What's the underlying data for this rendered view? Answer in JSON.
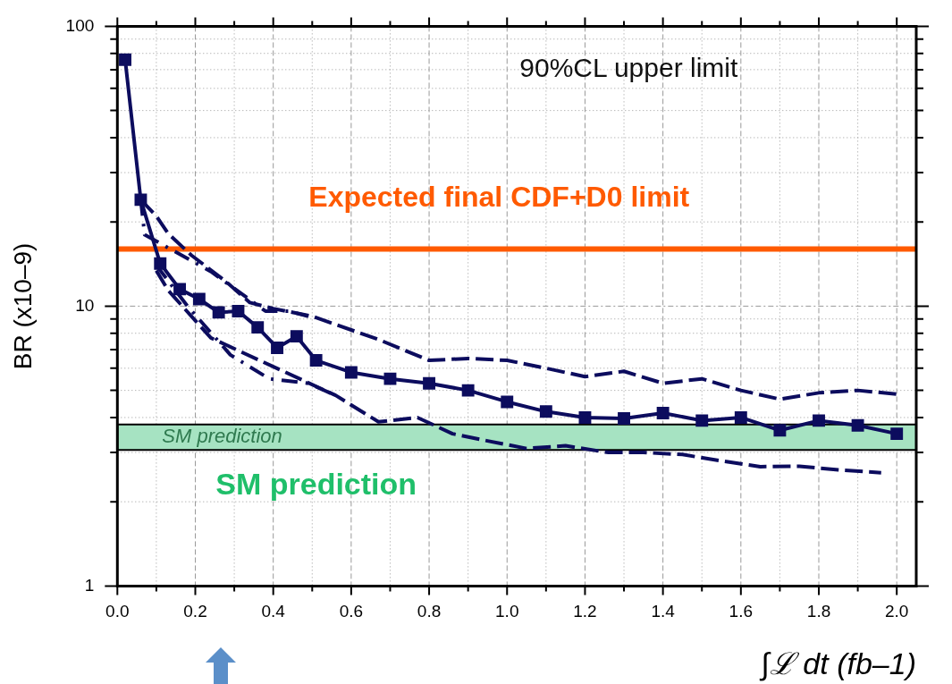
{
  "chart_data": {
    "type": "line",
    "xlabel": "∫ℒ dt (fb–1)",
    "ylabel": "BR (x10–9)",
    "xlim": [
      0,
      2.05
    ],
    "ylim": [
      1,
      100
    ],
    "log": "y",
    "grid": true,
    "legend": false,
    "xticks": [
      {
        "value": 0,
        "label": "0.0"
      },
      {
        "value": 0.1,
        "label": null
      },
      {
        "value": 0.2,
        "label": "0.2"
      },
      {
        "value": 0.3,
        "label": null
      },
      {
        "value": 0.4,
        "label": "0.4"
      },
      {
        "value": 0.5,
        "label": null
      },
      {
        "value": 0.6,
        "label": "0.6"
      },
      {
        "value": 0.7,
        "label": null
      },
      {
        "value": 0.8,
        "label": "0.8"
      },
      {
        "value": 0.9,
        "label": null
      },
      {
        "value": 1,
        "label": "1.0"
      },
      {
        "value": 1.1,
        "label": null
      },
      {
        "value": 1.2,
        "label": "1.2"
      },
      {
        "value": 1.3,
        "label": null
      },
      {
        "value": 1.4,
        "label": "1.4"
      },
      {
        "value": 1.5,
        "label": null
      },
      {
        "value": 1.6,
        "label": "1.6"
      },
      {
        "value": 1.7,
        "label": null
      },
      {
        "value": 1.8,
        "label": "1.8"
      },
      {
        "value": 1.9,
        "label": null
      },
      {
        "value": 2,
        "label": "2.0"
      }
    ],
    "yticks": [
      1,
      {
        "value": 2,
        "label": null
      },
      {
        "value": 3,
        "label": null
      },
      {
        "value": 4,
        "label": null
      },
      {
        "value": 5,
        "label": null
      },
      {
        "value": 6,
        "label": null
      },
      {
        "value": 7,
        "label": null
      },
      {
        "value": 8,
        "label": null
      },
      {
        "value": 9,
        "label": null
      },
      10,
      {
        "value": 20,
        "label": null
      },
      {
        "value": 30,
        "label": null
      },
      {
        "value": 40,
        "label": null
      },
      {
        "value": 50,
        "label": null
      },
      {
        "value": 60,
        "label": null
      },
      {
        "value": 70,
        "label": null
      },
      {
        "value": 80,
        "label": null
      },
      {
        "value": 90,
        "label": null
      },
      100
    ],
    "series": [
      {
        "color": "#0c0c5e",
        "marker": "square",
        "line_style": "solid",
        "x": [
          0.02,
          0.06,
          0.11,
          0.16,
          0.21,
          0.26,
          0.31,
          0.36,
          0.41,
          0.46,
          0.51,
          0.6,
          0.7,
          0.8,
          0.9,
          1.0,
          1.1,
          1.2,
          1.3,
          1.4,
          1.5,
          1.6,
          1.7,
          1.8,
          1.9,
          2.0
        ],
        "values": [
          76,
          24,
          14.2,
          11.5,
          10.6,
          9.5,
          9.6,
          8.4,
          7.1,
          7.8,
          6.4,
          5.8,
          5.5,
          5.3,
          5.0,
          4.55,
          4.2,
          4.0,
          3.97,
          4.15,
          3.9,
          4.0,
          3.6,
          3.9,
          3.75,
          3.5
        ]
      },
      {
        "color": "#0c0c5e",
        "marker": "none",
        "line_style": "dashed",
        "x": [
          0.06,
          0.1,
          0.13,
          0.19,
          0.28,
          0.34,
          0.4,
          0.5,
          0.56,
          0.67,
          0.8,
          0.9,
          1.0,
          1.1,
          1.2,
          1.3,
          1.4,
          1.5,
          1.6,
          1.7,
          1.8,
          1.9,
          2.0
        ],
        "values": [
          24,
          21,
          18.2,
          15.2,
          12.2,
          10.3,
          9.8,
          9.2,
          8.6,
          7.6,
          6.4,
          6.5,
          6.4,
          6.0,
          5.6,
          5.85,
          5.3,
          5.5,
          5.0,
          4.65,
          4.9,
          5.0,
          4.85
        ]
      },
      {
        "color": "#0c0c5e",
        "marker": "none",
        "line_style": "dashdot",
        "x": [
          0.06,
          0.07,
          0.24,
          0.38,
          0.44,
          0.49
        ],
        "values": [
          24,
          18,
          13.3,
          9.6,
          9.6,
          9.2
        ]
      },
      {
        "color": "#0c0c5e",
        "marker": "none",
        "line_style": "dashdot",
        "x": [
          0.1,
          0.18,
          0.29,
          0.39,
          0.49,
          0.56
        ],
        "values": [
          14,
          10,
          6.7,
          5.5,
          5.3,
          4.8
        ]
      },
      {
        "color": "#0c0c5e",
        "marker": "none",
        "line_style": "dashed",
        "x": [
          0.1,
          0.13,
          0.24,
          0.56,
          0.67,
          0.77,
          0.86,
          0.95,
          1.05,
          1.15,
          1.26,
          1.35,
          1.45,
          1.55,
          1.65,
          1.75,
          1.85,
          1.96
        ],
        "values": [
          13.4,
          11.4,
          7.7,
          4.8,
          3.86,
          4.0,
          3.5,
          3.3,
          3.1,
          3.17,
          3.0,
          3.0,
          2.95,
          2.8,
          2.67,
          2.68,
          2.6,
          2.54
        ]
      }
    ],
    "ref_lines": [
      {
        "axis": "y",
        "value": 16,
        "label": "Expected final CDF+D0 limit",
        "color": "#ff5a00",
        "line_style": "solid"
      }
    ],
    "bands": [
      {
        "axis": "y",
        "from": 3.06,
        "to": 3.78,
        "label": "SM prediction",
        "color": "#a6e3c2"
      }
    ],
    "annotations": [
      "90%CL upper limit",
      "SM prediction"
    ]
  }
}
